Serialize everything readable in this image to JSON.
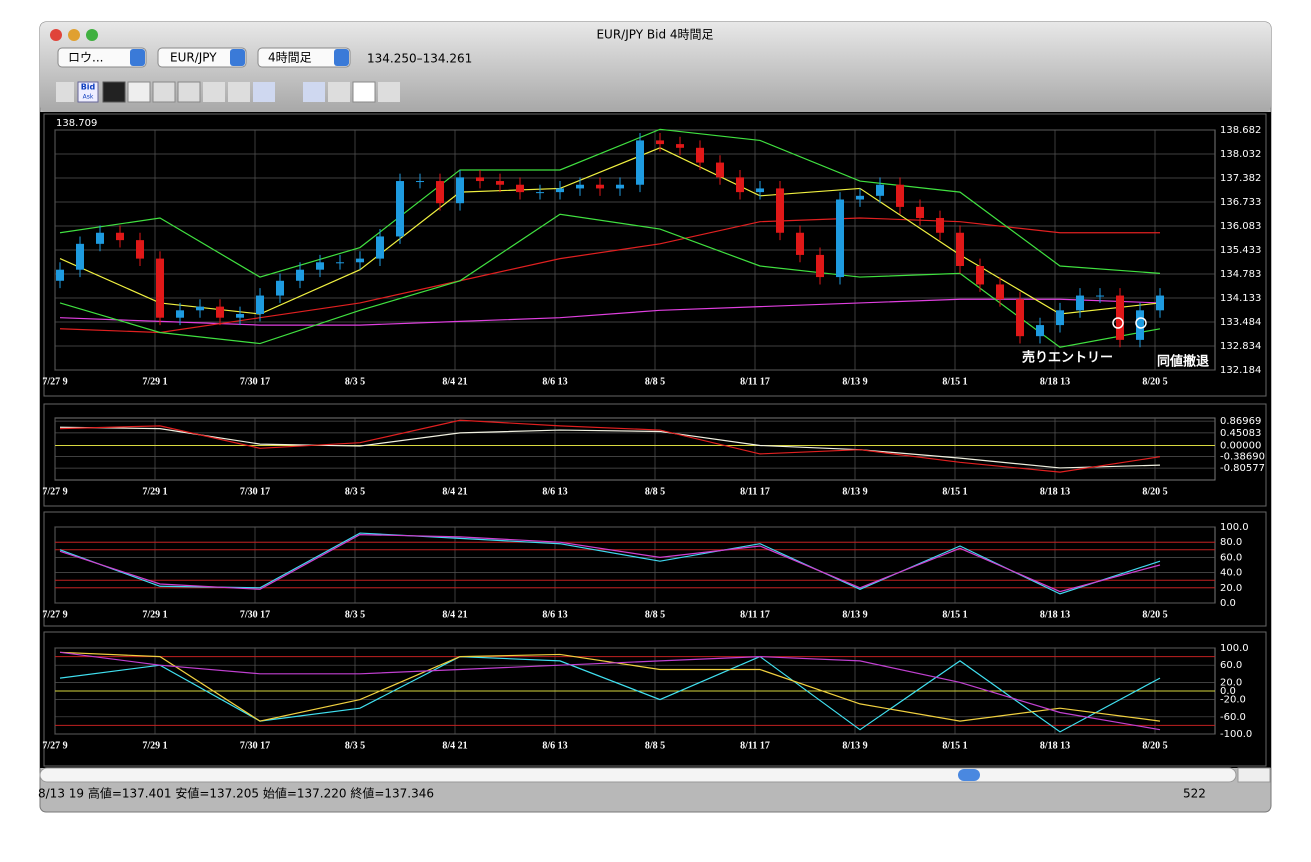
{
  "window": {
    "title": "EUR/JPY Bid 4時間足"
  },
  "toolbar": {
    "popups": [
      "ロウ...",
      "EUR/JPY",
      "4時間足"
    ],
    "quote": "134.250–134.261",
    "icons": [
      "Bid",
      "Ask"
    ]
  },
  "chart_data": [
    {
      "type": "candlestick",
      "top_label": "138.709",
      "up_color": "#1e9be0",
      "down_color": "#e01818",
      "xticks": [
        {
          "value": 0,
          "label": "7/27 9"
        },
        {
          "value": 5,
          "label": "7/29 1"
        },
        {
          "value": 10,
          "label": "7/30 17"
        },
        {
          "value": 15,
          "label": "8/3 5"
        },
        {
          "value": 20,
          "label": "8/4 21"
        },
        {
          "value": 25,
          "label": "8/6 13"
        },
        {
          "value": 30,
          "label": "8/8 5"
        },
        {
          "value": 35,
          "label": "8/11 17"
        },
        {
          "value": 40,
          "label": "8/13 9"
        },
        {
          "value": 45,
          "label": "8/15 1"
        },
        {
          "value": 50,
          "label": "8/18 13"
        },
        {
          "value": 55,
          "label": "8/20 5"
        }
      ],
      "ylim": [
        132.184,
        138.682
      ],
      "yticks": [
        138.682,
        138.032,
        137.382,
        136.733,
        136.083,
        135.433,
        134.783,
        134.133,
        133.484,
        132.834,
        132.184
      ],
      "open": [
        134.6,
        134.9,
        135.6,
        135.9,
        135.7,
        135.2,
        133.6,
        133.8,
        133.9,
        133.6,
        133.7,
        134.2,
        134.6,
        134.9,
        135.1,
        135.1,
        135.2,
        135.8,
        137.3,
        137.3,
        136.7,
        137.4,
        137.3,
        137.2,
        137.0,
        137.0,
        137.1,
        137.2,
        137.1,
        137.2,
        138.4,
        138.3,
        138.2,
        137.8,
        137.4,
        137.0,
        137.1,
        135.9,
        135.3,
        134.7,
        136.8,
        136.9,
        137.2,
        136.6,
        136.3,
        135.9,
        135.0,
        134.5,
        134.1,
        133.1,
        133.4,
        133.8,
        134.2,
        134.2,
        133.0,
        133.8
      ],
      "high": [
        135.1,
        135.8,
        136.1,
        136.1,
        135.9,
        135.4,
        134.0,
        134.1,
        134.1,
        133.9,
        134.4,
        134.8,
        135.1,
        135.3,
        135.3,
        135.4,
        136.0,
        137.5,
        137.5,
        137.5,
        137.6,
        137.6,
        137.5,
        137.4,
        137.2,
        137.3,
        137.4,
        137.4,
        137.4,
        138.6,
        138.6,
        138.5,
        138.4,
        138.0,
        137.6,
        137.3,
        137.3,
        136.1,
        135.5,
        137.0,
        137.1,
        137.4,
        137.4,
        136.8,
        136.5,
        136.1,
        135.2,
        134.7,
        134.3,
        133.6,
        134.0,
        134.4,
        134.4,
        134.4,
        134.0,
        134.4
      ],
      "low": [
        134.4,
        134.7,
        135.4,
        135.5,
        135.0,
        133.4,
        133.4,
        133.6,
        133.4,
        133.4,
        133.5,
        134.0,
        134.4,
        134.7,
        134.9,
        134.9,
        135.0,
        135.6,
        137.1,
        136.5,
        136.5,
        137.1,
        137.0,
        136.8,
        136.8,
        136.8,
        136.9,
        136.9,
        136.9,
        137.0,
        138.1,
        138.0,
        137.6,
        137.2,
        136.8,
        136.8,
        135.7,
        135.1,
        134.5,
        134.5,
        136.6,
        136.7,
        136.4,
        136.1,
        135.7,
        134.8,
        134.3,
        133.9,
        132.9,
        132.9,
        133.2,
        133.6,
        134.0,
        132.8,
        132.8,
        133.6
      ],
      "close": [
        134.9,
        135.6,
        135.9,
        135.7,
        135.2,
        133.6,
        133.8,
        133.9,
        133.6,
        133.7,
        134.2,
        134.6,
        134.9,
        135.1,
        135.1,
        135.2,
        135.8,
        137.3,
        137.3,
        136.7,
        137.4,
        137.3,
        137.2,
        137.0,
        137.0,
        137.1,
        137.2,
        137.1,
        137.2,
        138.4,
        138.3,
        138.2,
        137.8,
        137.4,
        137.0,
        137.1,
        135.9,
        135.3,
        134.7,
        136.8,
        136.9,
        137.2,
        136.6,
        136.3,
        135.9,
        135.0,
        134.5,
        134.1,
        133.1,
        133.4,
        133.8,
        134.2,
        134.2,
        133.0,
        133.8,
        134.2
      ],
      "overlays_x": [
        0,
        5,
        10,
        15,
        20,
        25,
        30,
        35,
        40,
        45,
        50,
        55
      ],
      "overlays": [
        {
          "color": "#e040e0",
          "values": [
            133.6,
            133.5,
            133.4,
            133.4,
            133.5,
            133.6,
            133.8,
            133.9,
            134.0,
            134.1,
            134.1,
            134.0
          ]
        },
        {
          "color": "#e02020",
          "values": [
            133.3,
            133.2,
            133.6,
            134.0,
            134.6,
            135.2,
            135.6,
            136.2,
            136.3,
            136.2,
            135.9,
            135.9
          ]
        },
        {
          "color": "#f0f040",
          "values": [
            135.2,
            134.0,
            133.7,
            134.9,
            137.0,
            137.1,
            138.2,
            136.9,
            137.1,
            135.3,
            133.7,
            134.0
          ]
        },
        {
          "color": "#40e040",
          "values": [
            135.9,
            136.3,
            134.7,
            135.5,
            137.6,
            137.6,
            138.7,
            138.4,
            137.3,
            137.0,
            135.0,
            134.8
          ]
        },
        {
          "color": "#40e040",
          "values": [
            134.0,
            133.2,
            132.9,
            133.8,
            134.6,
            136.4,
            136.0,
            135.0,
            134.7,
            134.8,
            132.8,
            133.3
          ]
        }
      ],
      "annotations": [
        "売りエントリー",
        "同値撤退"
      ]
    },
    {
      "type": "line",
      "x": [
        0,
        5,
        10,
        15,
        20,
        25,
        30,
        35,
        40,
        45,
        50,
        55
      ],
      "xticks": [
        {
          "value": 0,
          "label": "7/27 9"
        },
        {
          "value": 5,
          "label": "7/29 1"
        },
        {
          "value": 10,
          "label": "7/30 17"
        },
        {
          "value": 15,
          "label": "8/3 5"
        },
        {
          "value": 20,
          "label": "8/4 21"
        },
        {
          "value": 25,
          "label": "8/6 13"
        },
        {
          "value": 30,
          "label": "8/8 5"
        },
        {
          "value": 35,
          "label": "8/11 17"
        },
        {
          "value": 40,
          "label": "8/13 9"
        },
        {
          "value": 45,
          "label": "8/15 1"
        },
        {
          "value": 50,
          "label": "8/18 13"
        },
        {
          "value": 55,
          "label": "8/20 5"
        }
      ],
      "ylim": [
        -1.23,
        0.98
      ],
      "yticks": [
        0.86969,
        0.45083,
        {
          "value": 0,
          "label": "0.00000"
        },
        {
          "value": -0.3869,
          "label": "-0.38690"
        },
        -0.80577
      ],
      "ref_lines": [
        {
          "value": 0,
          "color": "#d8d840"
        }
      ],
      "series": [
        {
          "color": "#f0f0e0",
          "values": [
            0.65,
            0.6,
            0.05,
            -0.02,
            0.45,
            0.55,
            0.5,
            0.0,
            -0.15,
            -0.45,
            -0.8,
            -0.7
          ]
        },
        {
          "color": "#e02020",
          "values": [
            0.6,
            0.7,
            -0.1,
            0.1,
            0.9,
            0.7,
            0.55,
            -0.3,
            -0.15,
            -0.6,
            -0.95,
            -0.4
          ]
        }
      ]
    },
    {
      "type": "line",
      "x": [
        0,
        5,
        10,
        15,
        20,
        25,
        30,
        35,
        40,
        45,
        50,
        55
      ],
      "xticks": [
        {
          "value": 0,
          "label": "7/27 9"
        },
        {
          "value": 5,
          "label": "7/29 1"
        },
        {
          "value": 10,
          "label": "7/30 17"
        },
        {
          "value": 15,
          "label": "8/3 5"
        },
        {
          "value": 20,
          "label": "8/4 21"
        },
        {
          "value": 25,
          "label": "8/6 13"
        },
        {
          "value": 30,
          "label": "8/8 5"
        },
        {
          "value": 35,
          "label": "8/11 17"
        },
        {
          "value": 40,
          "label": "8/13 9"
        },
        {
          "value": 45,
          "label": "8/15 1"
        },
        {
          "value": 50,
          "label": "8/18 13"
        },
        {
          "value": 55,
          "label": "8/20 5"
        }
      ],
      "ylim": [
        0,
        100
      ],
      "yticks": [
        {
          "value": 100,
          "label": "100.0"
        },
        {
          "value": 80,
          "label": "80.0"
        },
        {
          "value": 60,
          "label": "60.0"
        },
        {
          "value": 40,
          "label": "40.0"
        },
        {
          "value": 20,
          "label": "20.0"
        },
        {
          "value": 0,
          "label": "0.0"
        }
      ],
      "ref_lines": [
        {
          "value": 80,
          "color": "#c02020"
        },
        {
          "value": 70,
          "color": "#c02020"
        },
        {
          "value": 30,
          "color": "#c02020"
        },
        {
          "value": 20,
          "color": "#c02020"
        }
      ],
      "series": [
        {
          "color": "#40d8f0",
          "values": [
            70,
            22,
            20,
            92,
            85,
            78,
            55,
            78,
            18,
            75,
            12,
            55
          ]
        },
        {
          "color": "#d040d0",
          "values": [
            68,
            25,
            18,
            90,
            87,
            80,
            60,
            75,
            20,
            72,
            15,
            50
          ]
        }
      ]
    },
    {
      "type": "line",
      "x": [
        0,
        5,
        10,
        15,
        20,
        25,
        30,
        35,
        40,
        45,
        50,
        55
      ],
      "xticks": [
        {
          "value": 0,
          "label": "7/27 9"
        },
        {
          "value": 5,
          "label": "7/29 1"
        },
        {
          "value": 10,
          "label": "7/30 17"
        },
        {
          "value": 15,
          "label": "8/3 5"
        },
        {
          "value": 20,
          "label": "8/4 21"
        },
        {
          "value": 25,
          "label": "8/6 13"
        },
        {
          "value": 30,
          "label": "8/8 5"
        },
        {
          "value": 35,
          "label": "8/11 17"
        },
        {
          "value": 40,
          "label": "8/13 9"
        },
        {
          "value": 45,
          "label": "8/15 1"
        },
        {
          "value": 50,
          "label": "8/18 13"
        },
        {
          "value": 55,
          "label": "8/20 5"
        }
      ],
      "ylim": [
        -100,
        100
      ],
      "yticks": [
        {
          "value": 100,
          "label": "100.0"
        },
        {
          "value": 60,
          "label": "60.0"
        },
        {
          "value": 20,
          "label": "20.0"
        },
        {
          "value": 0,
          "label": "0.0"
        },
        {
          "value": -20,
          "label": "-20.0"
        },
        {
          "value": -60,
          "label": "-60.0"
        },
        {
          "value": -100,
          "label": "-100.0"
        }
      ],
      "ref_lines": [
        {
          "value": 80,
          "color": "#c02020"
        },
        {
          "value": 0,
          "color": "#d8d840"
        },
        {
          "value": -80,
          "color": "#c02020"
        }
      ],
      "series": [
        {
          "color": "#40e0f0",
          "values": [
            30,
            60,
            -70,
            -40,
            80,
            70,
            -20,
            80,
            -90,
            70,
            -95,
            30
          ]
        },
        {
          "color": "#f0d040",
          "values": [
            90,
            80,
            -70,
            -20,
            80,
            85,
            50,
            50,
            -30,
            -70,
            -40,
            -70
          ]
        },
        {
          "color": "#c040d0",
          "values": [
            90,
            60,
            40,
            40,
            50,
            60,
            70,
            80,
            70,
            20,
            -50,
            -90
          ]
        }
      ]
    }
  ],
  "status_bar": {
    "text": "8/13 19  高値=137.401 安値=137.205 始値=137.220 終値=137.346",
    "count": "522"
  }
}
